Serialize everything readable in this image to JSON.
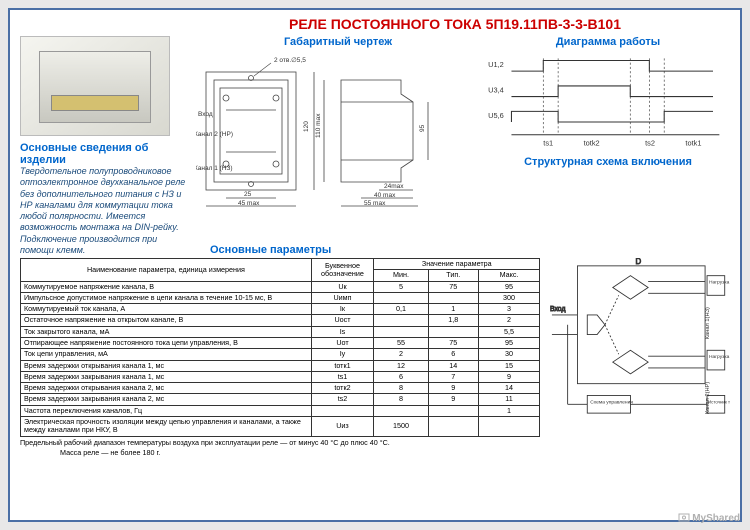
{
  "title": "РЕЛЕ ПОСТОЯННОГО ТОКА 5П19.11ПВ-3-3-В101",
  "sections": {
    "info_h": "Основные сведения об изделии",
    "drawing_h": "Габаритный чертеж",
    "diagram_h": "Диаграмма работы",
    "struct_h": "Структурная схема включения",
    "params_h": "Основные параметры"
  },
  "info_text": "Твердотельное полупроводниковое оптоэлектронное двухканальное реле без дополнительного питания с НЗ и НР каналами для коммутации тока любой полярности. Имеется возможность монтажа на DIN-рейку. Подключение производится при помощи клемм.",
  "drawing_labels": {
    "holes": "2 отв.∅5,5",
    "in": "Вход",
    "ch2": "Канал 2 (НР)",
    "ch1": "Канал 1 (НЗ)",
    "d25": "25",
    "d45": "45 max",
    "d24": "24max",
    "d40": "40 max",
    "d55": "55 max",
    "d120": "120",
    "d110": "110 max",
    "d95": "95"
  },
  "timing_labels": {
    "u12": "U1,2",
    "u34": "U3,4",
    "u56": "U5,6",
    "ts1": "ts1",
    "totk2": "totk2",
    "ts2": "ts2",
    "totk1": "totk1"
  },
  "struct_labels": {
    "D": "D",
    "in": "Вход",
    "ch1": "Канал 1(НЗ)",
    "ch2": "Канал 2(НР)",
    "load": "Нагрузка",
    "ctrl": "Схема управления",
    "src": "Источник тока"
  },
  "table": {
    "head": {
      "name": "Наименование параметра,\nединица измерения",
      "sym": "Буквенное\nобозначение",
      "val": "Значение параметра",
      "min": "Мин.",
      "typ": "Тип.",
      "max": "Макс."
    },
    "rows": [
      {
        "n": "Коммутируемое напряжение канала, В",
        "s": "Uк",
        "min": "5",
        "typ": "75",
        "max": "95"
      },
      {
        "n": "Импульсное допустимое напряжение в цепи канала в течение 10-15 мс, В",
        "s": "Uимп",
        "min": "",
        "typ": "",
        "max": "300"
      },
      {
        "n": "Коммутируемый ток канала, А",
        "s": "Iк",
        "min": "0,1",
        "typ": "1",
        "max": "3"
      },
      {
        "n": "Остаточное напряжение на открытом канале, В",
        "s": "Uост",
        "min": "",
        "typ": "1,8",
        "max": "2"
      },
      {
        "n": "Ток закрытого канала, мА",
        "s": "Is",
        "min": "",
        "typ": "",
        "max": "5,5"
      },
      {
        "n": "Отпирающее напряжение постоянного тока цепи управления, В",
        "s": "Uот",
        "min": "55",
        "typ": "75",
        "max": "95"
      },
      {
        "n": "Ток цепи управления, мА",
        "s": "Iу",
        "min": "2",
        "typ": "6",
        "max": "30"
      },
      {
        "n": "Время задержки открывания канала 1, мс",
        "s": "tотк1",
        "min": "12",
        "typ": "14",
        "max": "15"
      },
      {
        "n": "Время задержки закрывания канала 1, мс",
        "s": "ts1",
        "min": "6",
        "typ": "7",
        "max": "9"
      },
      {
        "n": "Время задержки открывания канала 2, мс",
        "s": "tотк2",
        "min": "8",
        "typ": "9",
        "max": "14"
      },
      {
        "n": "Время задержки закрывания канала 2, мс",
        "s": "ts2",
        "min": "8",
        "typ": "9",
        "max": "11"
      },
      {
        "n": "Частота переключения каналов, Гц",
        "s": "",
        "min": "",
        "typ": "",
        "max": "1"
      },
      {
        "n": "Электрическая прочность изоляции между цепью управления и каналами, а также между каналами при НКУ, В",
        "s": "Uиз",
        "min": "1500",
        "typ": "",
        "max": ""
      }
    ]
  },
  "footnote1": "Предельный рабочий диапазон температуры воздуха при эксплуатации реле — от минус 40 °С до плюс 40 °С.",
  "footnote2": "Масса реле — не более 180 г.",
  "watermark": "MyShared",
  "colors": {
    "title": "#cc0000",
    "heading": "#0066cc",
    "info": "#1a4a7a",
    "line": "#333333",
    "border": "#4a6fa5"
  }
}
